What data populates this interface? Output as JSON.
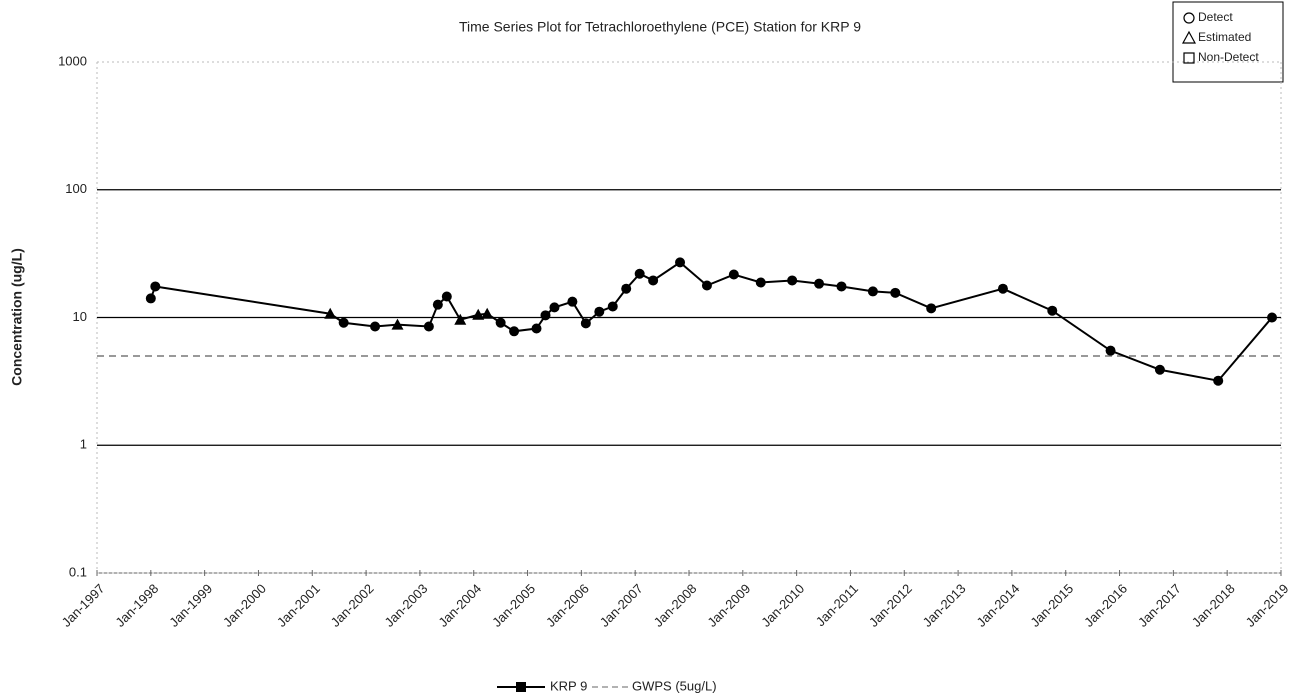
{
  "chart_data": {
    "type": "line",
    "title": "Time Series Plot for Tetrachloroethylene (PCE) Station for KRP  9",
    "y_label": "Concentration (ug/L)",
    "log_y": true,
    "grid": true,
    "x": [
      "1998-01",
      "1998-02",
      "2001-05",
      "2001-08",
      "2002-03",
      "2002-08",
      "2003-03",
      "2003-05",
      "2003-07",
      "2003-10",
      "2004-02",
      "2004-04",
      "2004-07",
      "2004-10",
      "2005-03",
      "2005-05",
      "2005-07",
      "2005-11",
      "2006-02",
      "2006-05",
      "2006-08",
      "2006-11",
      "2007-02",
      "2007-05",
      "2007-11",
      "2008-05",
      "2008-11",
      "2009-05",
      "2009-12",
      "2010-06",
      "2010-11",
      "2011-06",
      "2011-11",
      "2012-07",
      "2013-11",
      "2014-10",
      "2015-11",
      "2016-10",
      "2017-11",
      "2018-11"
    ],
    "series": [
      {
        "name": "KRP  9",
        "color": "#000000",
        "values": [
          14.1,
          17.5,
          10.7,
          9.1,
          8.5,
          8.8,
          8.5,
          12.6,
          14.6,
          9.6,
          10.5,
          10.7,
          9.1,
          7.8,
          8.2,
          10.4,
          12,
          13.3,
          9.0,
          11.1,
          12.2,
          16.8,
          22,
          19.5,
          27,
          17.8,
          21.7,
          18.8,
          19.5,
          18.4,
          17.5,
          16,
          15.6,
          11.8,
          16.8,
          11.3,
          5.5,
          3.9,
          3.2,
          10
        ],
        "point_markers": [
          "circle",
          "circle",
          "triangle",
          "circle",
          "circle",
          "triangle",
          "circle",
          "circle",
          "circle",
          "triangle",
          "triangle",
          "triangle",
          "circle",
          "circle",
          "circle",
          "circle",
          "circle",
          "circle",
          "circle",
          "circle",
          "circle",
          "circle",
          "circle",
          "circle",
          "circle",
          "circle",
          "circle",
          "circle",
          "circle",
          "circle",
          "circle",
          "circle",
          "circle",
          "circle",
          "circle",
          "circle",
          "circle",
          "circle",
          "circle",
          "circle"
        ]
      }
    ],
    "reference_line": {
      "name": "GWPS (5ug/L)",
      "value": 5,
      "color": "#999999"
    },
    "symbol_legend": [
      {
        "label": "Detect",
        "shape": "circle"
      },
      {
        "label": "Estimated",
        "shape": "triangle"
      },
      {
        "label": "Non-Detect",
        "shape": "square"
      }
    ],
    "xlim": [
      "1997-01",
      "2019-01"
    ],
    "xticks": [
      {
        "value": "1997-01",
        "label": "Jan-1997"
      },
      {
        "value": "1998-01",
        "label": "Jan-1998"
      },
      {
        "value": "1999-01",
        "label": "Jan-1999"
      },
      {
        "value": "2000-01",
        "label": "Jan-2000"
      },
      {
        "value": "2001-01",
        "label": "Jan-2001"
      },
      {
        "value": "2002-01",
        "label": "Jan-2002"
      },
      {
        "value": "2003-01",
        "label": "Jan-2003"
      },
      {
        "value": "2004-01",
        "label": "Jan-2004"
      },
      {
        "value": "2005-01",
        "label": "Jan-2005"
      },
      {
        "value": "2006-01",
        "label": "Jan-2006"
      },
      {
        "value": "2007-01",
        "label": "Jan-2007"
      },
      {
        "value": "2008-01",
        "label": "Jan-2008"
      },
      {
        "value": "2009-01",
        "label": "Jan-2009"
      },
      {
        "value": "2010-01",
        "label": "Jan-2010"
      },
      {
        "value": "2011-01",
        "label": "Jan-2011"
      },
      {
        "value": "2012-01",
        "label": "Jan-2012"
      },
      {
        "value": "2013-01",
        "label": "Jan-2013"
      },
      {
        "value": "2014-01",
        "label": "Jan-2014"
      },
      {
        "value": "2015-01",
        "label": "Jan-2015"
      },
      {
        "value": "2016-01",
        "label": "Jan-2016"
      },
      {
        "value": "2017-01",
        "label": "Jan-2017"
      },
      {
        "value": "2018-01",
        "label": "Jan-2018"
      },
      {
        "value": "2019-01",
        "label": "Jan-2019"
      }
    ],
    "ylim": [
      0.1,
      1000
    ],
    "yticks": [
      0.1,
      1,
      10,
      100,
      1000
    ]
  }
}
